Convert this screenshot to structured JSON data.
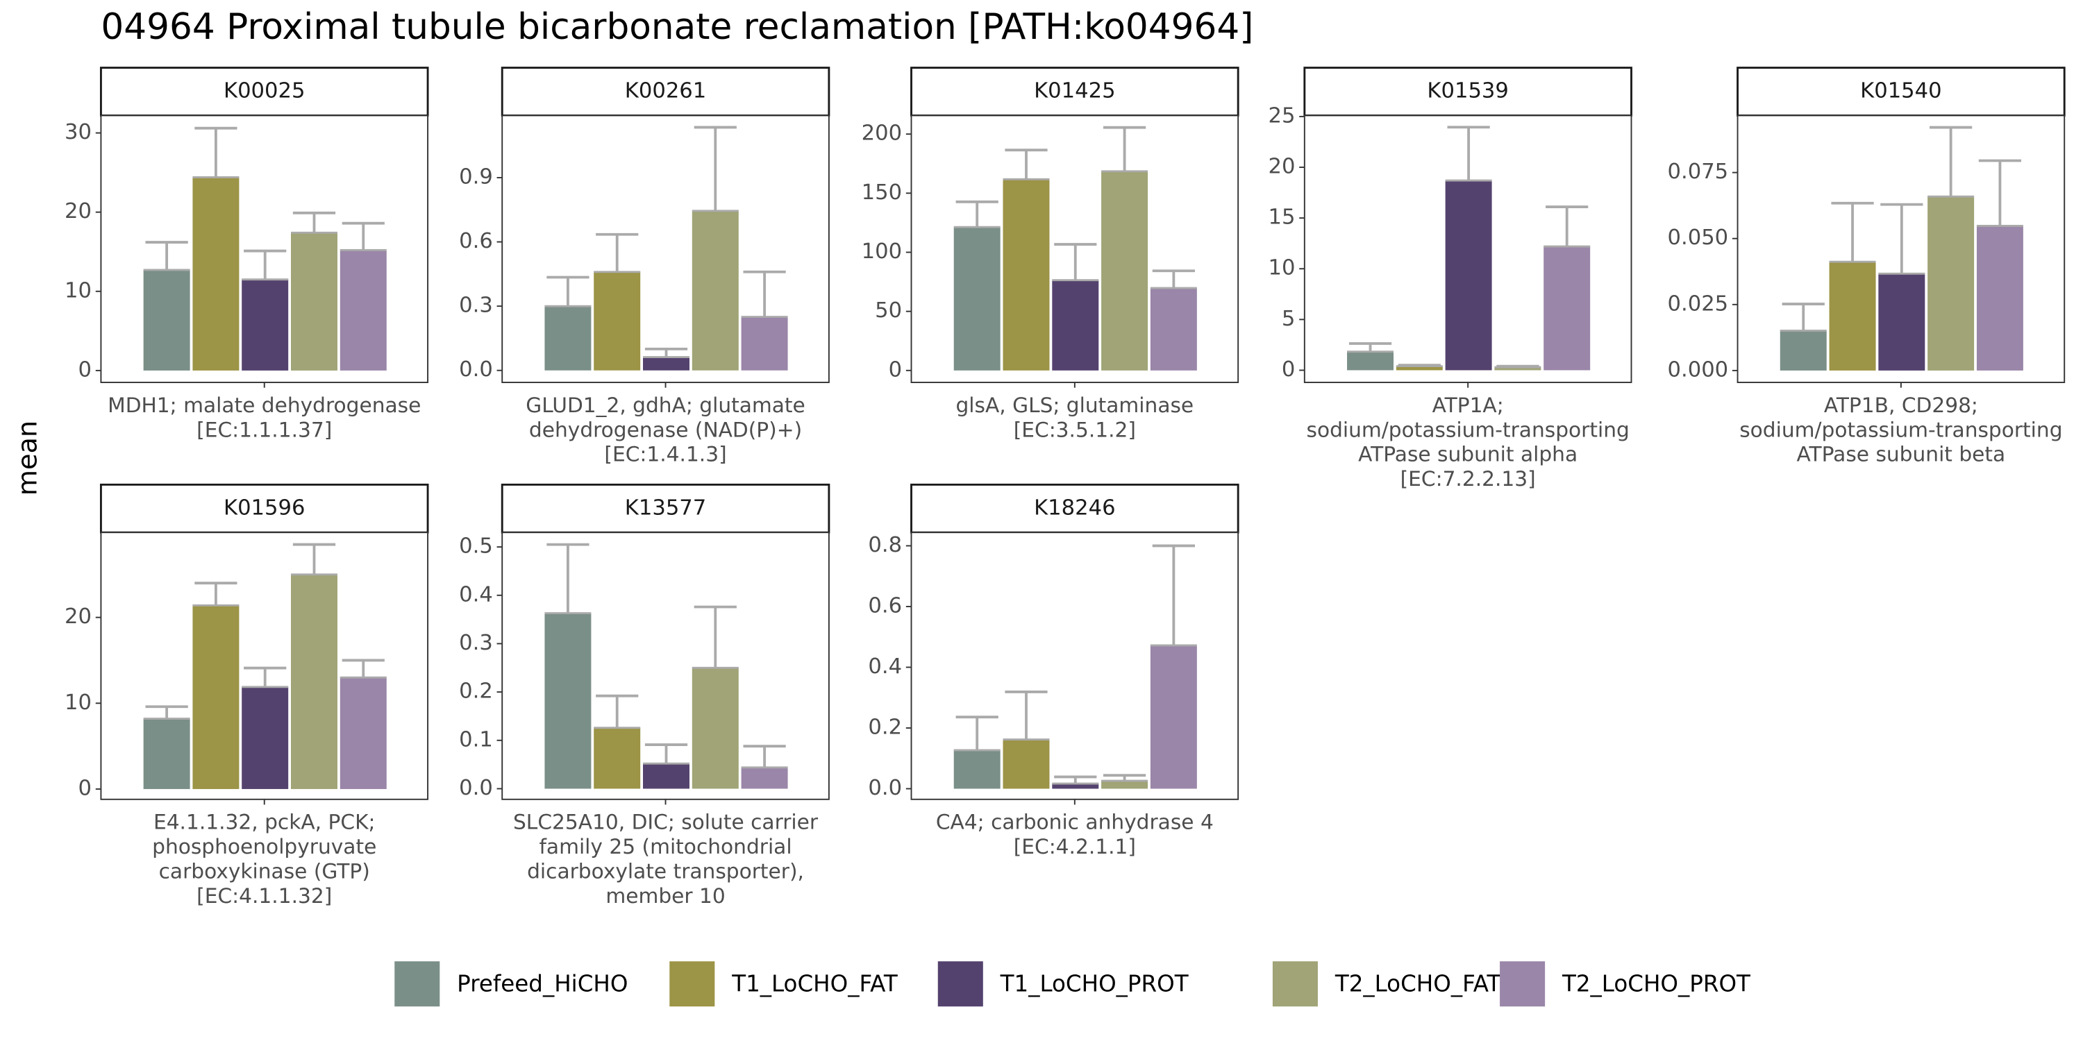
{
  "title": "04964 Proximal tubule bicarbonate reclamation [PATH:ko04964]",
  "ylabel": "mean",
  "legend": [
    {
      "name": "Prefeed_HiCHO",
      "color": "#7a8f87"
    },
    {
      "name": "T1_LoCHO_FAT",
      "color": "#9c9446"
    },
    {
      "name": "T1_LoCHO_PROT",
      "color": "#54426e"
    },
    {
      "name": "T2_LoCHO_FAT",
      "color": "#a0a476"
    },
    {
      "name": "T2_LoCHO_PROT",
      "color": "#9a86a8"
    }
  ],
  "chart_data": [
    {
      "type": "bar",
      "facet": "K00025",
      "category_lines": [
        "MDH1; malate dehydrogenase",
        "[EC:1.1.1.37]"
      ],
      "values": [
        12.7,
        24.4,
        11.5,
        17.4,
        15.2
      ],
      "errors": [
        3.5,
        6.2,
        3.6,
        2.5,
        3.4
      ],
      "ylim": [
        -1.5,
        32.2
      ],
      "yticks": [
        0,
        10,
        20,
        30
      ]
    },
    {
      "type": "bar",
      "facet": "K00261",
      "category_lines": [
        "GLUD1_2, gdhA; glutamate",
        "dehydrogenase (NAD(P)+)",
        "[EC:1.4.1.3]"
      ],
      "values": [
        0.3,
        0.46,
        0.062,
        0.745,
        0.25
      ],
      "errors": [
        0.135,
        0.175,
        0.038,
        0.39,
        0.21
      ],
      "ylim": [
        -0.056,
        1.19
      ],
      "yticks": [
        {
          "value": 0,
          "label": "0.0"
        },
        0.3,
        0.6,
        0.9
      ]
    },
    {
      "type": "bar",
      "facet": "K01425",
      "category_lines": [
        "glsA, GLS; glutaminase",
        "[EC:3.5.1.2]"
      ],
      "values": [
        121.3,
        161.8,
        76.4,
        168.5,
        69.7
      ],
      "errors": [
        21.4,
        24.7,
        30.3,
        37.1,
        14.6
      ],
      "ylim": [
        -10.1,
        215.7
      ],
      "yticks": [
        0,
        50,
        100,
        150,
        200
      ]
    },
    {
      "type": "bar",
      "facet": "K01539",
      "category_lines": [
        "ATP1A;",
        "sodium/potassium-transporting",
        "ATPase subunit alpha",
        "[EC:7.2.2.13]"
      ],
      "values": [
        1.83,
        0.4,
        18.7,
        0.3,
        12.2
      ],
      "errors": [
        0.8,
        0.1,
        5.25,
        0.1,
        3.9
      ],
      "ylim": [
        -1.2,
        25.1
      ],
      "yticks": [
        0,
        5,
        10,
        15,
        20,
        25
      ]
    },
    {
      "type": "bar",
      "facet": "K01540",
      "category_lines": [
        "ATP1B, CD298;",
        "sodium/potassium-transporting",
        "ATPase subunit beta"
      ],
      "values": [
        0.0151,
        0.0412,
        0.0367,
        0.0659,
        0.0548
      ],
      "errors": [
        0.0101,
        0.0222,
        0.0262,
        0.0262,
        0.0247
      ],
      "ylim": [
        -0.0045,
        0.0966
      ],
      "yticks": [
        {
          "value": 0,
          "label": "0.000"
        },
        0.025,
        {
          "value": 0.05,
          "label": "0.050"
        },
        0.075
      ]
    },
    {
      "type": "bar",
      "facet": "K01596",
      "category_lines": [
        "E4.1.1.32, pckA, PCK;",
        "phosphoenolpyruvate",
        "carboxykinase (GTP)",
        "[EC:4.1.1.32]"
      ],
      "values": [
        8.2,
        21.4,
        11.9,
        25.0,
        13.0
      ],
      "errors": [
        1.4,
        2.6,
        2.2,
        3.5,
        2.0
      ],
      "ylim": [
        -1.2,
        29.9
      ],
      "yticks": [
        0,
        10,
        20
      ]
    },
    {
      "type": "bar",
      "facet": "K13577",
      "category_lines": [
        "SLC25A10, DIC; solute carrier",
        "family 25 (mitochondrial",
        "dicarboxylate transporter),",
        "member 10"
      ],
      "values": [
        0.363,
        0.126,
        0.052,
        0.25,
        0.044
      ],
      "errors": [
        0.142,
        0.066,
        0.039,
        0.126,
        0.044
      ],
      "ylim": [
        -0.022,
        0.53
      ],
      "yticks": [
        {
          "value": 0,
          "label": "0.0"
        },
        0.1,
        0.2,
        0.3,
        0.4,
        0.5
      ]
    },
    {
      "type": "bar",
      "facet": "K18246",
      "category_lines": [
        "CA4; carbonic anhydrase 4",
        "[EC:4.2.1.1]"
      ],
      "values": [
        0.127,
        0.162,
        0.017,
        0.026,
        0.472
      ],
      "errors": [
        0.109,
        0.157,
        0.022,
        0.018,
        0.328
      ],
      "ylim": [
        -0.035,
        0.844
      ],
      "yticks": [
        {
          "value": 0,
          "label": "0.0"
        },
        0.2,
        0.4,
        0.6,
        0.8
      ]
    }
  ]
}
